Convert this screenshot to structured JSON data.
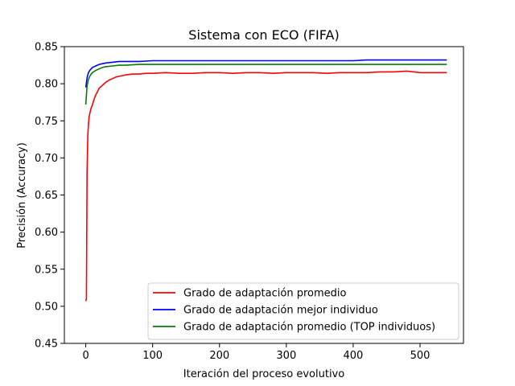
{
  "chart_data": {
    "type": "line",
    "title": "Sistema con ECO (FIFA)",
    "xlabel": "Iteración del proceso evolutivo",
    "ylabel": "Precisión (Accuracy)",
    "xlim": [
      -32,
      565
    ],
    "ylim": [
      0.45,
      0.85
    ],
    "xticks": [
      0,
      100,
      200,
      300,
      400,
      500
    ],
    "yticks": [
      0.45,
      0.5,
      0.55,
      0.6,
      0.65,
      0.7,
      0.75,
      0.8,
      0.85
    ],
    "grid": false,
    "legend_position": "lower-right",
    "series": [
      {
        "name": "Grado de adaptación promedio",
        "color": "#ff0000",
        "x": [
          0,
          1,
          2,
          3,
          4,
          5,
          6,
          8,
          10,
          12,
          15,
          18,
          20,
          25,
          30,
          35,
          40,
          45,
          50,
          60,
          70,
          80,
          90,
          100,
          120,
          140,
          160,
          180,
          200,
          220,
          240,
          260,
          280,
          300,
          320,
          340,
          360,
          380,
          400,
          420,
          440,
          460,
          480,
          500,
          520,
          540
        ],
        "values": [
          0.507,
          0.51,
          0.68,
          0.73,
          0.745,
          0.755,
          0.76,
          0.767,
          0.772,
          0.778,
          0.785,
          0.79,
          0.794,
          0.798,
          0.802,
          0.805,
          0.807,
          0.809,
          0.81,
          0.812,
          0.813,
          0.813,
          0.814,
          0.814,
          0.815,
          0.814,
          0.814,
          0.815,
          0.815,
          0.814,
          0.815,
          0.815,
          0.814,
          0.815,
          0.815,
          0.815,
          0.814,
          0.815,
          0.815,
          0.815,
          0.816,
          0.816,
          0.817,
          0.815,
          0.815,
          0.815
        ]
      },
      {
        "name": "Grado de adaptación mejor individuo",
        "color": "#0000ff",
        "x": [
          0,
          2,
          4,
          6,
          8,
          10,
          15,
          20,
          25,
          30,
          40,
          50,
          60,
          80,
          100,
          120,
          140,
          160,
          180,
          200,
          220,
          240,
          260,
          280,
          300,
          320,
          340,
          360,
          380,
          400,
          420,
          440,
          460,
          480,
          500,
          520,
          540
        ],
        "values": [
          0.795,
          0.808,
          0.815,
          0.818,
          0.82,
          0.822,
          0.824,
          0.826,
          0.827,
          0.828,
          0.829,
          0.83,
          0.83,
          0.83,
          0.831,
          0.831,
          0.831,
          0.831,
          0.831,
          0.831,
          0.831,
          0.831,
          0.831,
          0.831,
          0.831,
          0.831,
          0.831,
          0.831,
          0.831,
          0.831,
          0.832,
          0.832,
          0.832,
          0.832,
          0.832,
          0.832,
          0.832
        ]
      },
      {
        "name": "Grado de adaptación promedio (TOP individuos)",
        "color": "#008000",
        "x": [
          0,
          2,
          4,
          6,
          8,
          10,
          15,
          20,
          25,
          30,
          40,
          50,
          60,
          80,
          100,
          120,
          140,
          160,
          180,
          200,
          220,
          240,
          260,
          280,
          300,
          320,
          340,
          360,
          380,
          400,
          420,
          440,
          460,
          480,
          500,
          520,
          540
        ],
        "values": [
          0.772,
          0.797,
          0.806,
          0.81,
          0.813,
          0.815,
          0.818,
          0.82,
          0.822,
          0.823,
          0.824,
          0.825,
          0.825,
          0.826,
          0.826,
          0.826,
          0.826,
          0.826,
          0.826,
          0.826,
          0.826,
          0.826,
          0.826,
          0.826,
          0.826,
          0.826,
          0.826,
          0.826,
          0.826,
          0.826,
          0.826,
          0.826,
          0.826,
          0.826,
          0.826,
          0.826,
          0.826
        ]
      }
    ]
  }
}
